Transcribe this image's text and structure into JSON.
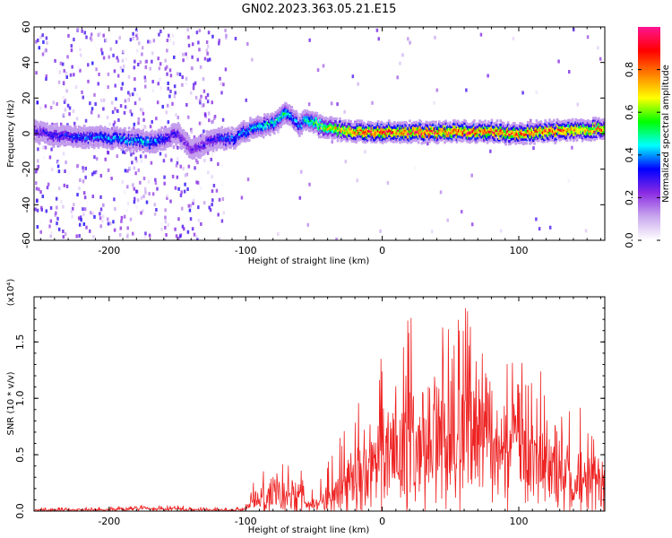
{
  "title": "GN02.2023.363.05.21.E15",
  "chart_data": [
    {
      "type": "heatmap",
      "xlabel": "Height of straight line (km)",
      "ylabel": "Frequency (Hz)",
      "xlim": [
        -255,
        163
      ],
      "ylim": [
        -60,
        60
      ],
      "x_ticks": [
        -200,
        -100,
        0,
        100
      ],
      "y_ticks": [
        -60,
        -40,
        -20,
        0,
        20,
        40,
        60
      ],
      "colorbar": {
        "label": "Normalized spectral amplitude",
        "range": [
          0.0,
          1.0
        ],
        "ticks": [
          0.0,
          0.2,
          0.4,
          0.6,
          0.8
        ],
        "colors": [
          "#ffffff",
          "#c9a8ee",
          "#8a2be2",
          "#0000ff",
          "#00ffff",
          "#00ff00",
          "#ffff00",
          "#ff8000",
          "#ff0000",
          "#ff1493"
        ]
      },
      "ridge": {
        "x": [
          -255,
          -230,
          -210,
          -190,
          -170,
          -150,
          -140,
          -130,
          -120,
          -110,
          -100,
          -90,
          -80,
          -70,
          -62,
          -55,
          -48,
          -40,
          -30,
          -20,
          -10,
          0,
          20,
          40,
          60,
          80,
          100,
          120,
          140,
          163
        ],
        "y": [
          1,
          -2,
          -2,
          -3,
          -5,
          0,
          -10,
          -5,
          -3,
          -3,
          2,
          4,
          6,
          12,
          5,
          8,
          5,
          3,
          2,
          1,
          1,
          1,
          1,
          1,
          1,
          1,
          0,
          1,
          2,
          3
        ],
        "amplitude": [
          0.3,
          0.35,
          0.4,
          0.45,
          0.45,
          0.3,
          0.25,
          0.3,
          0.35,
          0.4,
          0.45,
          0.5,
          0.55,
          0.5,
          0.4,
          0.55,
          0.6,
          0.7,
          0.8,
          0.85,
          0.9,
          0.92,
          0.95,
          0.92,
          0.93,
          0.9,
          0.88,
          0.9,
          0.85,
          0.8
        ]
      }
    },
    {
      "type": "line",
      "xlabel": "Height of straight line (km)",
      "ylabel": "SNR (10 * v/v)",
      "y_multiplier": "(x10⁴)",
      "xlim": [
        -255,
        163
      ],
      "ylim": [
        0.0,
        1.9
      ],
      "x_ticks": [
        -200,
        -100,
        0,
        100
      ],
      "y_ticks": [
        0.0,
        0.5,
        1.0,
        1.5
      ],
      "color": "#ee2222",
      "envelope": {
        "x": [
          -255,
          -200,
          -180,
          -150,
          -110,
          -100,
          -95,
          -90,
          -80,
          -70,
          -60,
          -55,
          -45,
          -40,
          -30,
          -20,
          -10,
          0,
          10,
          20,
          30,
          40,
          50,
          60,
          70,
          80,
          90,
          100,
          110,
          120,
          130,
          140,
          150,
          163
        ],
        "mean": [
          0.01,
          0.015,
          0.03,
          0.02,
          0.01,
          0.02,
          0.1,
          0.15,
          0.2,
          0.18,
          0.15,
          0.05,
          0.1,
          0.15,
          0.25,
          0.35,
          0.45,
          0.6,
          0.7,
          0.75,
          0.8,
          0.85,
          0.85,
          0.9,
          0.85,
          0.8,
          0.75,
          0.7,
          0.65,
          0.55,
          0.45,
          0.4,
          0.3,
          0.3
        ],
        "peak": [
          0.03,
          0.04,
          0.07,
          0.05,
          0.03,
          0.05,
          0.25,
          0.35,
          0.45,
          0.5,
          0.4,
          0.15,
          0.3,
          0.5,
          0.7,
          0.9,
          1.2,
          1.4,
          1.6,
          1.75,
          1.65,
          1.7,
          1.6,
          1.85,
          1.55,
          1.5,
          1.45,
          1.4,
          1.2,
          1.3,
          1.1,
          1.0,
          0.9,
          0.7
        ]
      }
    }
  ]
}
